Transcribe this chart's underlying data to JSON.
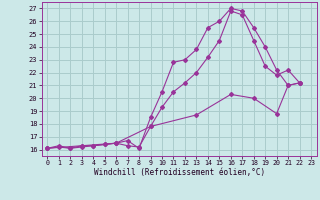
{
  "xlabel": "Windchill (Refroidissement éolien,°C)",
  "background_color": "#cce8e8",
  "grid_color": "#aacccc",
  "line_color": "#993399",
  "xlim": [
    -0.5,
    23.5
  ],
  "ylim": [
    15.5,
    27.5
  ],
  "yticks": [
    16,
    17,
    18,
    19,
    20,
    21,
    22,
    23,
    24,
    25,
    26,
    27
  ],
  "xticks": [
    0,
    1,
    2,
    3,
    4,
    5,
    6,
    7,
    8,
    9,
    10,
    11,
    12,
    13,
    14,
    15,
    16,
    17,
    18,
    19,
    20,
    21,
    22,
    23
  ],
  "series1_x": [
    0,
    1,
    2,
    3,
    4,
    5,
    6,
    7,
    8,
    9,
    10,
    11,
    12,
    13,
    14,
    15,
    16,
    17,
    18,
    19,
    20,
    21,
    22
  ],
  "series1_y": [
    16.1,
    16.3,
    16.1,
    16.3,
    16.3,
    16.4,
    16.5,
    16.7,
    16.1,
    18.5,
    20.5,
    22.8,
    23.0,
    23.8,
    25.5,
    26.0,
    27.0,
    26.8,
    25.5,
    24.0,
    22.2,
    21.0,
    21.2
  ],
  "series2_x": [
    0,
    1,
    2,
    3,
    4,
    5,
    6,
    7,
    8,
    9,
    10,
    11,
    12,
    13,
    14,
    15,
    16,
    17,
    18,
    19,
    20,
    21,
    22
  ],
  "series2_y": [
    16.1,
    16.2,
    16.1,
    16.2,
    16.3,
    16.4,
    16.5,
    16.3,
    16.2,
    17.8,
    19.3,
    20.5,
    21.2,
    22.0,
    23.2,
    24.5,
    26.8,
    26.5,
    24.5,
    22.5,
    21.8,
    22.2,
    21.2
  ],
  "series3_x": [
    0,
    3,
    6,
    9,
    13,
    16,
    18,
    20,
    21,
    22
  ],
  "series3_y": [
    16.1,
    16.3,
    16.5,
    17.8,
    18.7,
    20.3,
    20.0,
    18.8,
    21.0,
    21.2
  ]
}
